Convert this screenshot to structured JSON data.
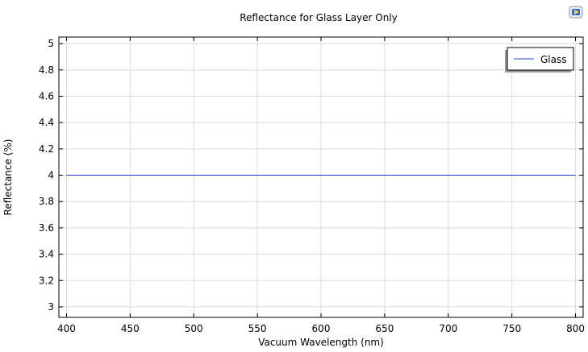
{
  "chart_data": {
    "type": "line",
    "title": "Reflectance for Glass Layer Only",
    "xlabel": "Vacuum Wavelength (nm)",
    "ylabel": "Reflectance (%)",
    "xlim": [
      394,
      806
    ],
    "ylim": [
      2.92,
      5.05
    ],
    "xticks": [
      400,
      450,
      500,
      550,
      600,
      650,
      700,
      750,
      800
    ],
    "yticks": [
      3,
      3.2,
      3.4,
      3.6,
      3.8,
      4,
      4.2,
      4.4,
      4.6,
      4.8,
      5
    ],
    "ytick_labels": [
      "3",
      "3.2",
      "3.4",
      "3.6",
      "3.8",
      "4",
      "4.2",
      "4.4",
      "4.6",
      "4.8",
      "5"
    ],
    "grid": true,
    "legend_position": "top-right",
    "series": [
      {
        "name": "Glass",
        "color": "#1f3fbf",
        "x": [
          400,
          800
        ],
        "y": [
          4,
          4
        ]
      }
    ]
  },
  "toolbar": {
    "icon": "plot-export-icon"
  }
}
